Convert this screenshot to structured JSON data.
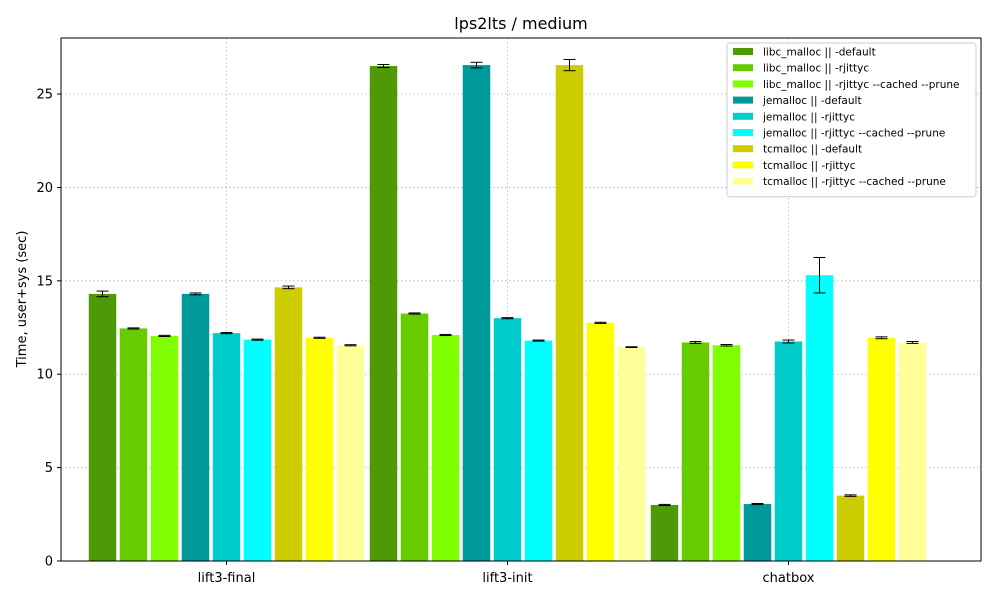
{
  "chart_data": {
    "type": "bar",
    "title": "lps2lts / medium",
    "xlabel": "",
    "ylabel": "Time, user+sys (sec)",
    "categories": [
      "lift3-final",
      "lift3-init",
      "chatbox"
    ],
    "ylim": [
      0,
      28
    ],
    "yticks": [
      0,
      5,
      10,
      15,
      20,
      25
    ],
    "grid": true,
    "legend_position": "upper right",
    "series": [
      {
        "name": "libc_malloc || -default",
        "color": "#4e9a06",
        "values": [
          14.3,
          26.5,
          3.0
        ],
        "errors": [
          0.15,
          0.08,
          0.03
        ]
      },
      {
        "name": "libc_malloc || -rjittyc",
        "color": "#66cc00",
        "values": [
          12.45,
          13.25,
          11.7
        ],
        "errors": [
          0.03,
          0.03,
          0.05
        ]
      },
      {
        "name": "libc_malloc || -rjittyc --cached --prune",
        "color": "#80ff00",
        "values": [
          12.05,
          12.1,
          11.55
        ],
        "errors": [
          0.03,
          0.03,
          0.04
        ]
      },
      {
        "name": "jemalloc || -default",
        "color": "#009999",
        "values": [
          14.3,
          26.55,
          3.05
        ],
        "errors": [
          0.05,
          0.15,
          0.03
        ]
      },
      {
        "name": "jemalloc || -rjittyc",
        "color": "#00cccc",
        "values": [
          12.2,
          13.0,
          11.75
        ],
        "errors": [
          0.03,
          0.03,
          0.08
        ]
      },
      {
        "name": "jemalloc || -rjittyc --cached --prune",
        "color": "#00ffff",
        "values": [
          11.85,
          11.8,
          15.3
        ],
        "errors": [
          0.03,
          0.03,
          0.95
        ]
      },
      {
        "name": "tcmalloc || -default",
        "color": "#cccc00",
        "values": [
          14.65,
          26.55,
          3.5
        ],
        "errors": [
          0.07,
          0.3,
          0.04
        ]
      },
      {
        "name": "tcmalloc || -rjittyc",
        "color": "#ffff00",
        "values": [
          11.95,
          12.75,
          11.95
        ],
        "errors": [
          0.03,
          0.03,
          0.05
        ]
      },
      {
        "name": "tcmalloc || -rjittyc --cached --prune",
        "color": "#ffff99",
        "values": [
          11.55,
          11.45,
          11.7
        ],
        "errors": [
          0.03,
          0.02,
          0.05
        ]
      }
    ]
  }
}
